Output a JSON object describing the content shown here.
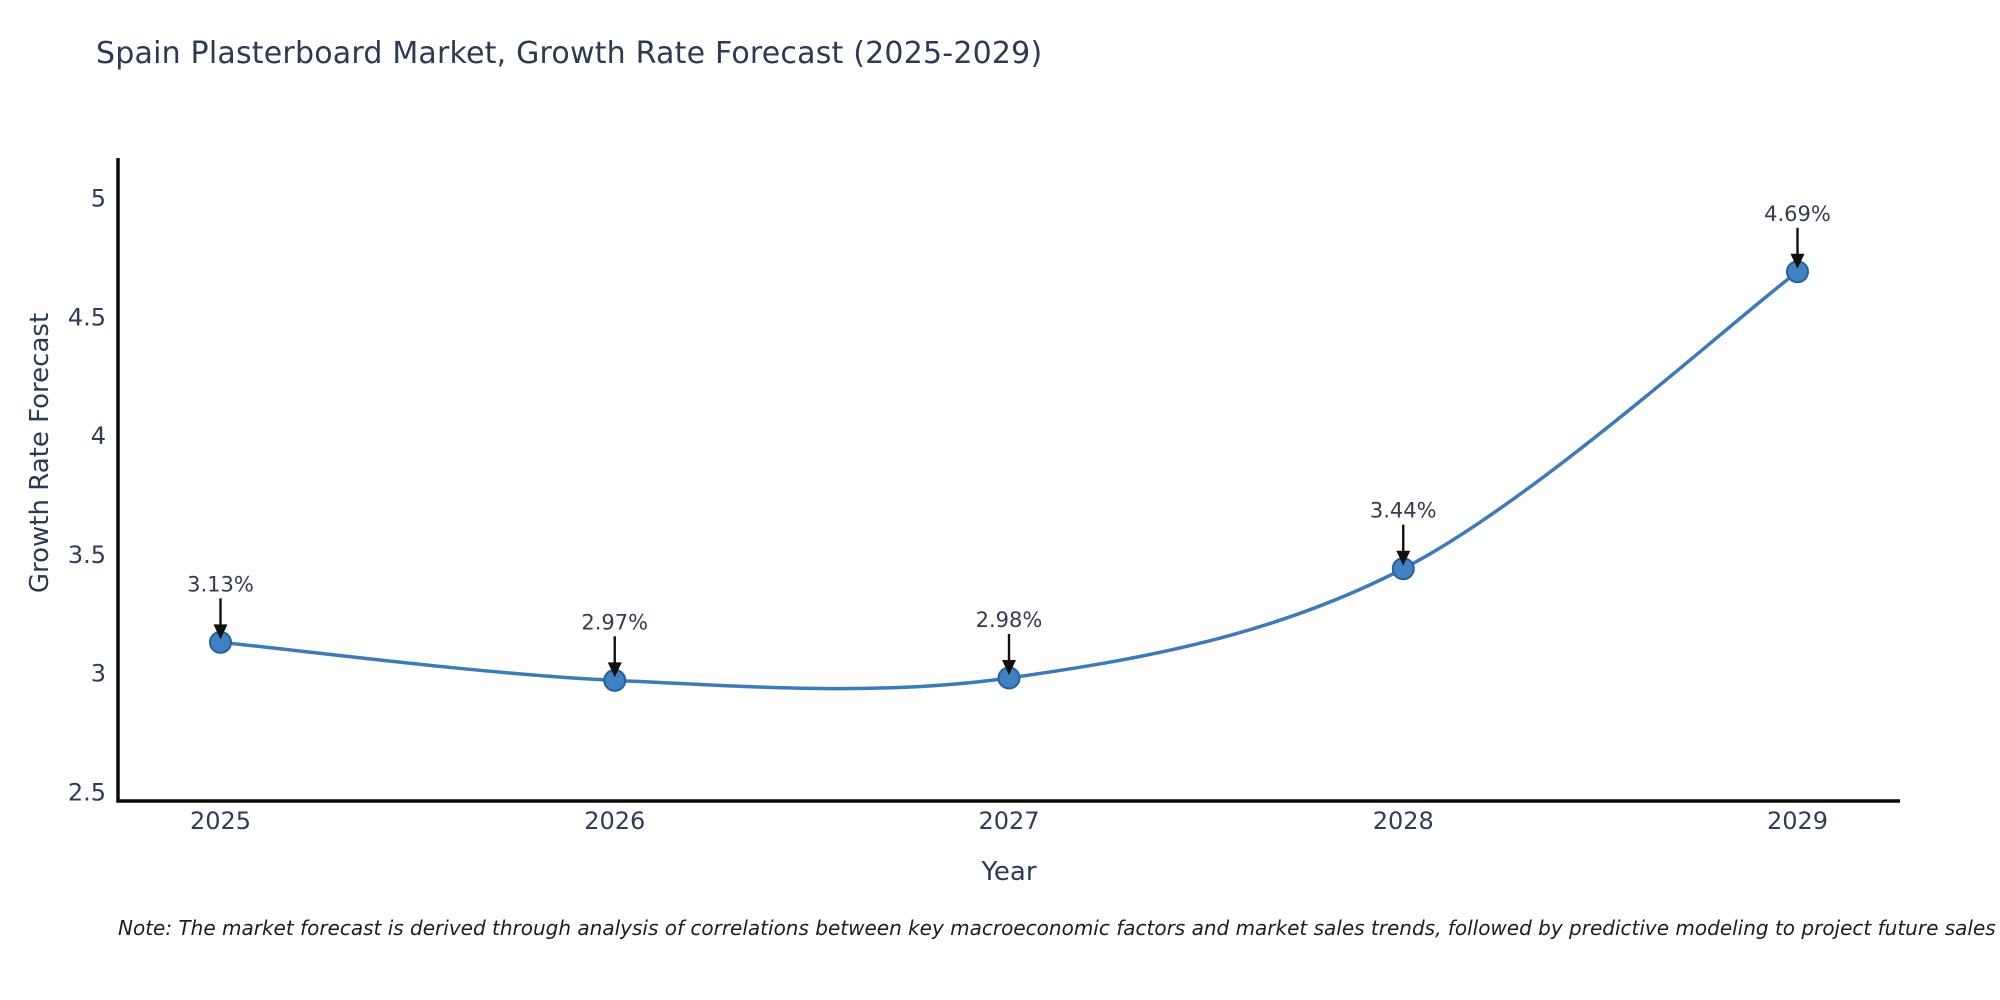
{
  "title": "Spain Plasterboard Market, Growth Rate Forecast (2025-2029)",
  "note": "Note: The market forecast is derived through analysis of correlations between key macroeconomic factors and market sales trends, followed by predictive modeling to project future sales",
  "chart_data": {
    "type": "line",
    "title": "Spain Plasterboard Market, Growth Rate Forecast (2025-2029)",
    "xlabel": "Year",
    "ylabel": "Growth Rate Forecast",
    "x": [
      2025,
      2026,
      2027,
      2028,
      2029
    ],
    "y": [
      3.13,
      2.97,
      2.98,
      3.44,
      4.69
    ],
    "point_labels": [
      "3.13%",
      "2.97%",
      "2.98%",
      "3.44%",
      "4.69%"
    ],
    "xtick_labels": [
      "2025",
      "2026",
      "2027",
      "2028",
      "2029"
    ],
    "yticks": [
      2.5,
      3,
      3.5,
      4,
      4.5,
      5
    ],
    "ytick_labels": [
      "2.5",
      "3",
      "3.5",
      "4",
      "4.5",
      "5"
    ],
    "xlim": [
      2024.74,
      2029.26
    ],
    "ylim": [
      2.462,
      5.169
    ],
    "grid": false,
    "legend": null,
    "smooth_spline": true,
    "colors": {
      "line": "#3d7ab8",
      "marker_fill": "#3f81c1",
      "marker_edge": "#2a6099",
      "annotation_arrow": "#111111",
      "axis_spine": "#0a0a0a",
      "tick_text": "#2f3d58",
      "title_text": "#2d3a53"
    }
  }
}
